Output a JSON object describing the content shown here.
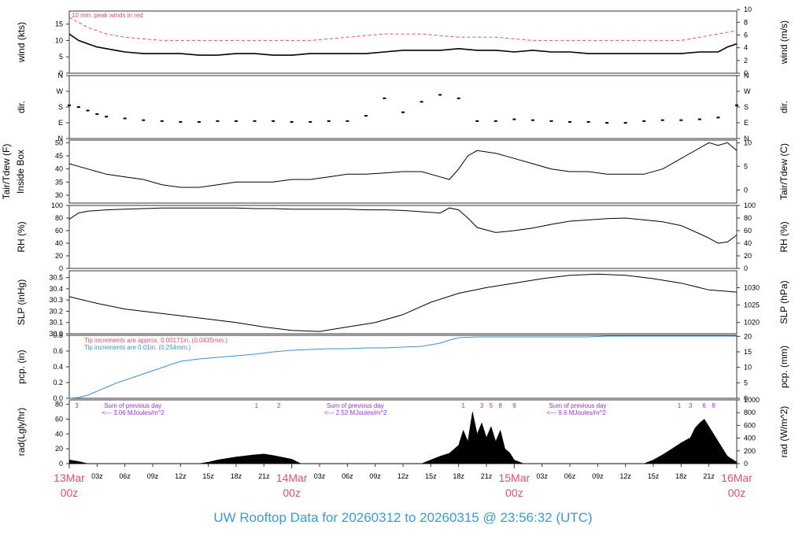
{
  "footer_title": "UW Rooftop Data for 20260312  to  20260315 @ 23:56:32  (UTC)",
  "colors": {
    "red": "#e0506a",
    "blue": "#3b8fd6",
    "purple": "#a030d8",
    "title": "#3b9ad6",
    "ink": "#000000"
  },
  "time_axis": {
    "range_hours": [
      0,
      72
    ],
    "minor_ticks": [
      {
        "h": 3,
        "label": "03z"
      },
      {
        "h": 6,
        "label": "06z"
      },
      {
        "h": 9,
        "label": "09z"
      },
      {
        "h": 12,
        "label": "12z"
      },
      {
        "h": 15,
        "label": "15z"
      },
      {
        "h": 18,
        "label": "18z"
      },
      {
        "h": 21,
        "label": "21z"
      },
      {
        "h": 27,
        "label": "03z"
      },
      {
        "h": 30,
        "label": "06z"
      },
      {
        "h": 33,
        "label": "09z"
      },
      {
        "h": 36,
        "label": "12z"
      },
      {
        "h": 39,
        "label": "15z"
      },
      {
        "h": 42,
        "label": "18z"
      },
      {
        "h": 45,
        "label": "21z"
      },
      {
        "h": 51,
        "label": "03z"
      },
      {
        "h": 54,
        "label": "06z"
      },
      {
        "h": 57,
        "label": "09z"
      },
      {
        "h": 60,
        "label": "12z"
      },
      {
        "h": 63,
        "label": "15z"
      },
      {
        "h": 66,
        "label": "18z"
      },
      {
        "h": 69,
        "label": "21z"
      }
    ],
    "day_labels": [
      {
        "h": 0,
        "line1": "13Mar",
        "line2": "00z"
      },
      {
        "h": 24,
        "line1": "14Mar",
        "line2": "00z"
      },
      {
        "h": 48,
        "line1": "15Mar",
        "line2": "00z"
      },
      {
        "h": 72,
        "line1": "16Mar",
        "line2": "00z"
      }
    ]
  },
  "chart_data": [
    {
      "id": "wind",
      "type": "line",
      "ylabel_left": "wind (kts)",
      "ylabel_right": "wind (m/s)",
      "ylim": [
        0,
        19
      ],
      "left_ticks": [
        0,
        5,
        10,
        15
      ],
      "right_ticks": [
        0,
        2,
        4,
        6,
        8,
        10
      ],
      "annotation": "10 min. peak winds in red",
      "series": [
        {
          "hours": [
            0,
            1,
            2,
            3,
            4,
            5,
            6,
            8,
            10,
            12,
            14,
            16,
            18,
            20,
            22,
            24,
            26,
            28,
            30,
            32,
            34,
            36,
            38,
            40,
            42,
            44,
            46,
            48,
            50,
            52,
            54,
            56,
            58,
            60,
            62,
            64,
            66,
            68,
            70,
            71,
            72
          ],
          "values": [
            12,
            10,
            9,
            8,
            7.5,
            7,
            6.5,
            6,
            6,
            6,
            5.5,
            5.5,
            6,
            6,
            5.5,
            5.5,
            6,
            6,
            6,
            6,
            6.5,
            7,
            7,
            7,
            7.5,
            7,
            7,
            6.5,
            7,
            6.5,
            6.5,
            6,
            6,
            6,
            6,
            6,
            6,
            6.5,
            6.5,
            8,
            9
          ]
        },
        {
          "name": "10 min. peak winds in red",
          "hours": [
            0,
            2,
            4,
            6,
            10,
            14,
            18,
            22,
            26,
            30,
            34,
            38,
            42,
            46,
            50,
            54,
            58,
            62,
            66,
            70,
            72
          ],
          "values": [
            17,
            14,
            12,
            11,
            10,
            10,
            10,
            10,
            10,
            11,
            12,
            12,
            11,
            11,
            10,
            10,
            10,
            10,
            10,
            12,
            13
          ]
        }
      ]
    },
    {
      "id": "dir",
      "type": "scatter",
      "ylabel_left": "dir.",
      "ylabel_right": "dir.",
      "left_tick_labels": [
        "N",
        "E",
        "S",
        "W",
        "N"
      ],
      "right_tick_labels": [
        "N",
        "E",
        "S",
        "W",
        "N"
      ],
      "ylim": [
        0,
        360
      ],
      "hours": [
        0,
        1,
        2,
        3,
        4,
        6,
        8,
        10,
        12,
        14,
        16,
        18,
        20,
        22,
        24,
        26,
        28,
        30,
        32,
        34,
        36,
        38,
        40,
        42,
        44,
        46,
        48,
        50,
        52,
        54,
        56,
        58,
        60,
        62,
        64,
        66,
        68,
        70,
        72
      ],
      "values": [
        190,
        180,
        160,
        140,
        125,
        115,
        105,
        100,
        95,
        95,
        100,
        100,
        100,
        100,
        95,
        95,
        100,
        100,
        130,
        230,
        150,
        210,
        250,
        230,
        100,
        100,
        110,
        105,
        100,
        95,
        95,
        90,
        90,
        100,
        105,
        105,
        110,
        120,
        190
      ]
    },
    {
      "id": "temp",
      "type": "line",
      "ylabel_left": "Tair/Tdew (F)",
      "ylabel_left2": "Inside Box",
      "ylabel_right": "Tair/Tdew (C)",
      "ylim": [
        27,
        51
      ],
      "left_ticks": [
        30,
        35,
        40,
        45,
        50
      ],
      "right_ticks": [
        0,
        5,
        10
      ],
      "hours": [
        0,
        2,
        4,
        6,
        8,
        10,
        12,
        14,
        16,
        18,
        20,
        22,
        24,
        26,
        28,
        30,
        32,
        34,
        36,
        38,
        40,
        41,
        42,
        43,
        44,
        46,
        48,
        50,
        52,
        54,
        56,
        58,
        60,
        62,
        64,
        66,
        68,
        69,
        70,
        71,
        72
      ],
      "values": [
        42,
        40,
        38,
        37,
        36,
        34,
        33,
        33,
        34,
        35,
        35,
        35,
        36,
        36,
        37,
        38,
        38,
        38.5,
        39,
        39,
        37,
        36,
        40,
        45,
        47,
        46,
        44,
        42,
        40,
        39,
        39,
        38,
        38,
        38,
        40,
        44,
        48,
        50,
        49,
        50,
        47
      ]
    },
    {
      "id": "rh",
      "type": "line",
      "ylabel_left": "RH (%)",
      "ylabel_right": "RH (%)",
      "ylim": [
        0,
        100
      ],
      "left_ticks": [
        0,
        20,
        40,
        60,
        80,
        100
      ],
      "right_ticks": [
        0,
        20,
        40,
        60,
        80,
        100
      ],
      "hours": [
        0,
        1,
        2,
        4,
        6,
        8,
        10,
        12,
        14,
        16,
        18,
        20,
        22,
        24,
        26,
        28,
        30,
        32,
        34,
        36,
        38,
        40,
        41,
        42,
        43,
        44,
        46,
        48,
        50,
        52,
        54,
        56,
        58,
        60,
        62,
        64,
        66,
        68,
        69,
        70,
        71,
        72
      ],
      "values": [
        78,
        88,
        91,
        93,
        94,
        95,
        96,
        96,
        96,
        96,
        96,
        95,
        95,
        94,
        94,
        94,
        94,
        93,
        93,
        92,
        90,
        88,
        96,
        93,
        80,
        65,
        57,
        60,
        64,
        70,
        75,
        77,
        79,
        80,
        77,
        74,
        68,
        55,
        48,
        40,
        42,
        53
      ]
    },
    {
      "id": "slp",
      "type": "line",
      "ylabel_left": "SLP (inHg)",
      "ylabel_right": "SLP (hPa)",
      "ylim": [
        30.0,
        30.56
      ],
      "left_ticks": [
        30.0,
        30.1,
        30.2,
        30.3,
        30.4,
        30.5
      ],
      "left_tick_labels": [
        "30.0",
        "30.1",
        "30.2",
        "30.3",
        "30.4",
        "30.5"
      ],
      "right_ticks": [
        1020,
        1025,
        1030
      ],
      "hours": [
        0,
        3,
        6,
        9,
        12,
        15,
        18,
        21,
        24,
        27,
        30,
        33,
        36,
        39,
        42,
        45,
        48,
        51,
        54,
        57,
        60,
        63,
        66,
        69,
        72
      ],
      "values": [
        30.33,
        30.27,
        30.22,
        30.19,
        30.16,
        30.13,
        30.1,
        30.06,
        30.03,
        30.02,
        30.06,
        30.1,
        30.17,
        30.28,
        30.36,
        30.41,
        30.45,
        30.49,
        30.52,
        30.53,
        30.52,
        30.49,
        30.45,
        30.39,
        30.37
      ]
    },
    {
      "id": "pcp",
      "type": "line",
      "ylabel_left": "pcp. (in)",
      "ylabel_right": "pcp. (mm)",
      "ylim": [
        0,
        0.8
      ],
      "left_ticks": [
        0,
        0.2,
        0.4,
        0.6,
        0.8
      ],
      "left_tick_labels": [
        "0.0",
        "0.2",
        "0.4",
        "0.6",
        "0.8"
      ],
      "right_ticks": [
        0,
        5,
        10,
        15,
        20
      ],
      "note_red": "Tip increments are approx. 0.00171in. (0.0435mm.)",
      "note_blue": "Tip increments are 0.01in. (0.254mm.)",
      "hours": [
        0,
        1,
        2,
        3,
        4,
        5,
        6,
        7,
        8,
        9,
        10,
        11,
        12,
        14,
        16,
        18,
        20,
        22,
        24,
        26,
        28,
        30,
        32,
        34,
        36,
        38,
        40,
        41,
        42,
        44,
        46,
        48,
        50,
        52,
        54,
        56,
        58,
        60,
        62,
        64,
        66,
        68,
        70,
        72
      ],
      "values": [
        0,
        0.01,
        0.04,
        0.09,
        0.14,
        0.19,
        0.23,
        0.27,
        0.31,
        0.35,
        0.39,
        0.43,
        0.47,
        0.5,
        0.52,
        0.54,
        0.56,
        0.59,
        0.61,
        0.62,
        0.63,
        0.63,
        0.64,
        0.64,
        0.65,
        0.66,
        0.7,
        0.74,
        0.77,
        0.78,
        0.78,
        0.78,
        0.78,
        0.78,
        0.78,
        0.78,
        0.79,
        0.79,
        0.79,
        0.79,
        0.79,
        0.79,
        0.79,
        0.79
      ]
    },
    {
      "id": "rad",
      "type": "area",
      "ylabel_left": "rad(Lgly/hr)",
      "ylabel_right": "rad (W/m^2)",
      "ylim": [
        0,
        86
      ],
      "left_ticks": [
        0,
        20,
        40,
        60,
        80
      ],
      "right_ticks": [
        0,
        200,
        400,
        600,
        800,
        1000
      ],
      "day_sums": [
        {
          "h": 3.5,
          "line1": "Sum of previous day",
          "line2": "<--- 3.06 MJoules/m^2"
        },
        {
          "h": 27.5,
          "line1": "Sum of previous day",
          "line2": "<--- 2.52 MJoules/m^2"
        },
        {
          "h": 51.5,
          "line1": "Sum of previous day",
          "line2": "<--- 9.6 MJoules/m^2"
        }
      ],
      "hour_marks": [
        {
          "h": 0.8,
          "label": "3"
        },
        {
          "h": 20.2,
          "label": "1"
        },
        {
          "h": 22.6,
          "label": "2"
        },
        {
          "h": 42.5,
          "label": "1"
        },
        {
          "h": 44.5,
          "label": "3"
        },
        {
          "h": 45.5,
          "label": "5"
        },
        {
          "h": 46.5,
          "label": "8"
        },
        {
          "h": 48,
          "label": "9"
        },
        {
          "h": 65.8,
          "label": "1"
        },
        {
          "h": 67,
          "label": "3"
        },
        {
          "h": 68.5,
          "label": "6"
        },
        {
          "h": 69.5,
          "label": "8"
        }
      ],
      "hours": [
        0,
        1,
        2,
        14,
        15,
        16,
        18,
        20,
        21,
        22,
        24,
        25,
        38,
        39,
        40,
        41,
        42,
        42.5,
        43,
        43.5,
        44,
        44.5,
        45,
        45.5,
        46,
        46.5,
        47,
        47.5,
        48,
        49,
        62,
        63,
        64,
        65,
        66,
        67,
        67.5,
        68,
        68.5,
        69,
        70,
        71,
        72
      ],
      "values": [
        5,
        3,
        0,
        0,
        2,
        5,
        9,
        12,
        13,
        11,
        6,
        0,
        0,
        5,
        10,
        14,
        25,
        45,
        30,
        70,
        40,
        55,
        35,
        50,
        30,
        45,
        20,
        15,
        5,
        0,
        0,
        5,
        12,
        20,
        28,
        35,
        48,
        55,
        60,
        50,
        30,
        10,
        2
      ]
    }
  ]
}
